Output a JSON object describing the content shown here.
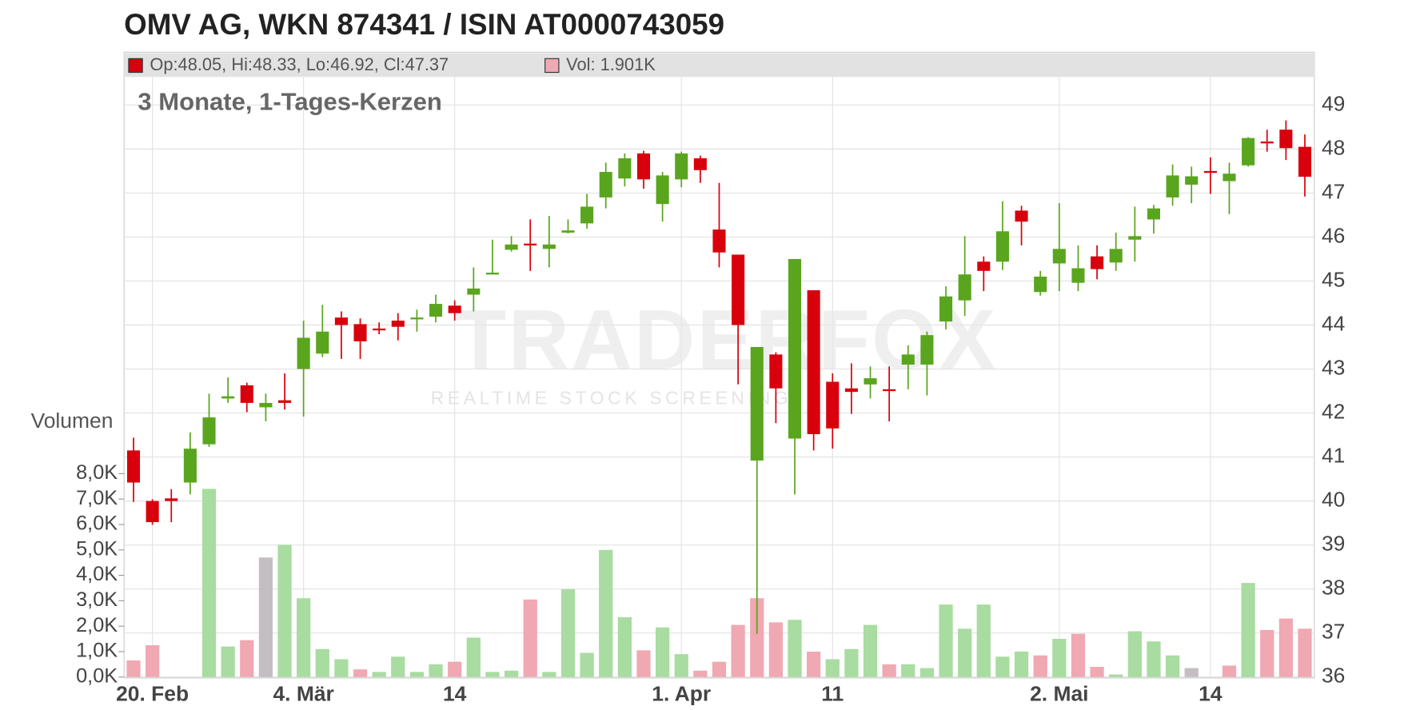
{
  "chart_data": {
    "type": "candlestick",
    "title": "OMV AG, WKN 874341 / ISIN AT0000743059",
    "subtitle": "3 Monate, 1-Tages-Kerzen",
    "legend_ohlc": "Op:48.05, Hi:48.33, Lo:46.92, Cl:47.37",
    "legend_volume": "Vol: 1.901K",
    "volume_axis_label": "Volumen",
    "watermark": "TRADERFOX",
    "watermark_sub": "REALTIME STOCK SCREENING",
    "categories": [
      null,
      "20. Feb",
      null,
      null,
      null,
      null,
      null,
      null,
      null,
      "4. Mär",
      null,
      null,
      null,
      null,
      null,
      null,
      null,
      "14",
      null,
      null,
      null,
      null,
      null,
      null,
      null,
      null,
      null,
      null,
      null,
      "1. Apr",
      null,
      null,
      null,
      null,
      null,
      null,
      null,
      "11",
      null,
      null,
      null,
      null,
      null,
      null,
      null,
      null,
      null,
      null,
      null,
      "2. Mai",
      null,
      null,
      null,
      null,
      null,
      null,
      null,
      "14",
      null,
      null,
      null,
      null,
      null
    ],
    "open": [
      41.15,
      40.0,
      40.06,
      40.42,
      41.29,
      42.33,
      42.63,
      42.13,
      42.29,
      43.0,
      43.35,
      44.17,
      44.02,
      43.92,
      44.1,
      44.13,
      44.19,
      44.44,
      44.69,
      45.17,
      45.71,
      45.85,
      45.73,
      46.1,
      46.31,
      46.9,
      47.33,
      47.9,
      46.75,
      47.31,
      47.79,
      46.17,
      45.6,
      40.92,
      43.33,
      41.42,
      44.79,
      42.71,
      42.56,
      42.65,
      42.54,
      43.1,
      43.1,
      44.08,
      44.56,
      45.44,
      45.44,
      46.6,
      44.75,
      45.4,
      44.96,
      45.56,
      45.42,
      45.94,
      46.4,
      46.9,
      47.19,
      47.5,
      47.27,
      47.63,
      48.17,
      48.44,
      48.05
    ],
    "high": [
      41.44,
      40.04,
      40.27,
      41.56,
      42.44,
      42.81,
      42.69,
      42.44,
      42.9,
      44.1,
      44.46,
      44.31,
      44.15,
      44.06,
      44.27,
      44.35,
      44.69,
      44.56,
      45.31,
      45.94,
      46.02,
      46.4,
      46.48,
      46.4,
      46.98,
      47.69,
      47.9,
      47.96,
      47.48,
      47.94,
      47.85,
      47.23,
      45.6,
      43.5,
      43.38,
      45.5,
      44.79,
      42.9,
      43.13,
      43.06,
      43.06,
      43.54,
      43.85,
      44.88,
      46.02,
      45.56,
      46.81,
      46.71,
      45.23,
      46.77,
      45.81,
      45.81,
      46.1,
      46.69,
      46.73,
      47.65,
      47.6,
      47.81,
      47.69,
      48.27,
      48.44,
      48.65,
      48.33
    ],
    "low": [
      39.98,
      39.46,
      39.52,
      40.15,
      41.23,
      42.23,
      42.02,
      41.81,
      42.08,
      41.92,
      43.27,
      43.23,
      43.23,
      43.79,
      43.65,
      43.85,
      44.06,
      44.1,
      44.31,
      45.15,
      45.67,
      45.23,
      45.31,
      46.08,
      46.19,
      46.65,
      47.15,
      47.1,
      46.35,
      47.13,
      47.23,
      45.31,
      42.65,
      36.98,
      41.77,
      40.15,
      41.15,
      41.19,
      41.98,
      42.33,
      41.81,
      42.54,
      42.4,
      43.9,
      44.21,
      44.77,
      45.25,
      45.81,
      44.67,
      44.77,
      44.77,
      45.04,
      45.23,
      45.44,
      46.08,
      46.71,
      46.77,
      46.98,
      46.52,
      47.6,
      47.94,
      47.75,
      46.92
    ],
    "close": [
      40.42,
      39.52,
      40.0,
      41.19,
      41.9,
      42.38,
      42.23,
      42.23,
      42.23,
      43.71,
      43.85,
      44.0,
      43.63,
      43.88,
      43.96,
      44.17,
      44.48,
      44.27,
      44.83,
      45.19,
      45.83,
      45.81,
      45.83,
      46.15,
      46.69,
      47.48,
      47.79,
      47.31,
      47.4,
      47.9,
      47.52,
      45.65,
      44.0,
      43.5,
      42.56,
      45.5,
      41.52,
      41.65,
      42.48,
      42.79,
      42.5,
      43.33,
      43.77,
      44.65,
      45.15,
      45.23,
      46.13,
      46.35,
      45.1,
      45.73,
      45.29,
      45.27,
      45.73,
      46.02,
      46.65,
      47.4,
      47.38,
      47.46,
      47.44,
      48.25,
      48.13,
      48.02,
      47.37
    ],
    "volume": [
      0.65,
      1.25,
      0,
      0,
      7.4,
      1.2,
      1.45,
      4.7,
      5.2,
      3.1,
      1.1,
      0.7,
      0.3,
      0.2,
      0.8,
      0.2,
      0.5,
      0.6,
      1.55,
      0.2,
      0.25,
      3.05,
      0.2,
      3.45,
      0.95,
      5.0,
      2.35,
      1.05,
      1.95,
      0.9,
      0.25,
      0.6,
      2.05,
      3.1,
      2.15,
      2.25,
      1.0,
      0.7,
      1.1,
      2.05,
      0.5,
      0.5,
      0.35,
      2.85,
      1.9,
      2.85,
      0.8,
      1.0,
      0.85,
      1.5,
      1.7,
      0.4,
      0.1,
      1.8,
      1.4,
      0.85,
      0.35,
      0,
      0.45,
      3.7,
      1.85,
      2.3,
      1.901
    ],
    "volume_colors": [
      "#f0a8b2",
      "#f0a8b2",
      "#f0a8b2",
      "#a8dca0",
      "#a8dca0",
      "#a8dca0",
      "#f0a8b2",
      "#c2bec2",
      "#a8dca0",
      "#a8dca0",
      "#a8dca0",
      "#a8dca0",
      "#f0a8b2",
      "#a8dca0",
      "#a8dca0",
      "#a8dca0",
      "#a8dca0",
      "#f0a8b2",
      "#a8dca0",
      "#a8dca0",
      "#a8dca0",
      "#f0a8b2",
      "#a8dca0",
      "#a8dca0",
      "#a8dca0",
      "#a8dca0",
      "#a8dca0",
      "#f0a8b2",
      "#a8dca0",
      "#a8dca0",
      "#f0a8b2",
      "#f0a8b2",
      "#f0a8b2",
      "#f0a8b2",
      "#f0a8b2",
      "#a8dca0",
      "#f0a8b2",
      "#a8dca0",
      "#a8dca0",
      "#a8dca0",
      "#f0a8b2",
      "#a8dca0",
      "#a8dca0",
      "#a8dca0",
      "#a8dca0",
      "#a8dca0",
      "#a8dca0",
      "#a8dca0",
      "#f0a8b2",
      "#a8dca0",
      "#f0a8b2",
      "#f0a8b2",
      "#a8dca0",
      "#a8dca0",
      "#a8dca0",
      "#a8dca0",
      "#c2bec2",
      "#a8dca0",
      "#f0a8b2",
      "#a8dca0",
      "#f0a8b2",
      "#f0a8b2",
      "#f0a8b2"
    ],
    "up_color": "#5aa51e",
    "down_color": "#d9000d",
    "volume_legend_color": "#f0a8b2",
    "ylim": [
      36,
      50.2
    ],
    "yticks": [
      36,
      37,
      38,
      39,
      40,
      41,
      42,
      43,
      44,
      45,
      46,
      47,
      48,
      49
    ],
    "y2lim": [
      0,
      8
    ],
    "y2ticks": [
      {
        "value": 0,
        "label": "0,0K"
      },
      {
        "value": 1,
        "label": "1,0K"
      },
      {
        "value": 2,
        "label": "2,0K"
      },
      {
        "value": 3,
        "label": "3,0K"
      },
      {
        "value": 4,
        "label": "4,0K"
      },
      {
        "value": 5,
        "label": "5,0K"
      },
      {
        "value": 6,
        "label": "6,0K"
      },
      {
        "value": 7,
        "label": "7,0K"
      },
      {
        "value": 8,
        "label": "8,0K"
      }
    ],
    "grid": true
  }
}
